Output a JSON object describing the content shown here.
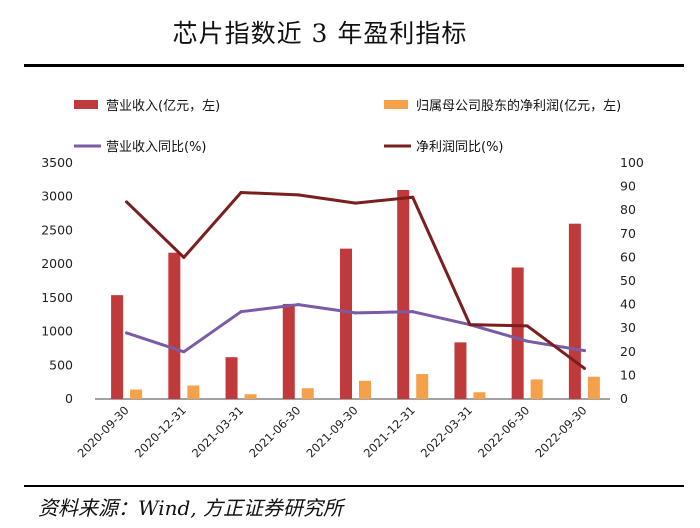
{
  "title": "芯片指数近 3 年盈利指标",
  "source": "资料来源：Wind, 方正证券研究所",
  "chart_data": {
    "type": "bar+line",
    "categories": [
      "2020-09-30",
      "2020-12-31",
      "2021-03-31",
      "2021-06-30",
      "2021-09-30",
      "2021-12-31",
      "2022-03-31",
      "2022-06-30",
      "2022-09-30"
    ],
    "series": [
      {
        "name": "营业收入(亿元，左)",
        "type": "bar",
        "axis": "left",
        "color": "#c0393b",
        "values": [
          1540,
          2170,
          620,
          1410,
          2230,
          3100,
          840,
          1950,
          2600
        ]
      },
      {
        "name": "归属母公司股东的净利润(亿元，左)",
        "type": "bar",
        "axis": "left",
        "color": "#f5a04a",
        "values": [
          140,
          200,
          70,
          160,
          270,
          370,
          100,
          290,
          330
        ]
      },
      {
        "name": "营业收入同比(%)",
        "type": "line",
        "axis": "right",
        "color": "#7b5aa6",
        "values": [
          28,
          20,
          37,
          40,
          36.5,
          37,
          31.5,
          24.5,
          20.5
        ]
      },
      {
        "name": "净利润同比(%)",
        "type": "line",
        "axis": "right",
        "color": "#7a1e1e",
        "values": [
          83.5,
          60,
          87.5,
          86.5,
          83,
          85.5,
          31.5,
          31,
          13
        ]
      }
    ],
    "yleft": {
      "min": 0,
      "max": 3500,
      "ticks": [
        "0",
        "500",
        "1000",
        "1500",
        "2000",
        "2500",
        "3000",
        "3500"
      ]
    },
    "yright": {
      "min": 0,
      "max": 100,
      "ticks": [
        "0",
        "10",
        "20",
        "30",
        "40",
        "50",
        "60",
        "70",
        "80",
        "90",
        "100"
      ]
    },
    "legend_position": "top"
  }
}
